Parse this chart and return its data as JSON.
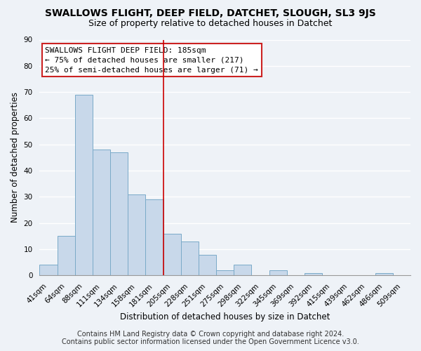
{
  "title": "SWALLOWS FLIGHT, DEEP FIELD, DATCHET, SLOUGH, SL3 9JS",
  "subtitle": "Size of property relative to detached houses in Datchet",
  "xlabel": "Distribution of detached houses by size in Datchet",
  "ylabel": "Number of detached properties",
  "bar_color": "#c8d8ea",
  "bar_edge_color": "#7aaac8",
  "categories": [
    "41sqm",
    "64sqm",
    "88sqm",
    "111sqm",
    "134sqm",
    "158sqm",
    "181sqm",
    "205sqm",
    "228sqm",
    "251sqm",
    "275sqm",
    "298sqm",
    "322sqm",
    "345sqm",
    "369sqm",
    "392sqm",
    "415sqm",
    "439sqm",
    "462sqm",
    "486sqm",
    "509sqm"
  ],
  "values": [
    4,
    15,
    69,
    48,
    47,
    31,
    29,
    16,
    13,
    8,
    2,
    4,
    0,
    2,
    0,
    1,
    0,
    0,
    0,
    1,
    0
  ],
  "vline_color": "#cc0000",
  "ylim": [
    0,
    90
  ],
  "yticks": [
    0,
    10,
    20,
    30,
    40,
    50,
    60,
    70,
    80,
    90
  ],
  "annotation_title": "SWALLOWS FLIGHT DEEP FIELD: 185sqm",
  "annotation_line1": "← 75% of detached houses are smaller (217)",
  "annotation_line2": "25% of semi-detached houses are larger (71) →",
  "footer1": "Contains HM Land Registry data © Crown copyright and database right 2024.",
  "footer2": "Contains public sector information licensed under the Open Government Licence v3.0.",
  "background_color": "#eef2f7",
  "plot_background": "#eef2f7",
  "grid_color": "white",
  "title_fontsize": 10,
  "subtitle_fontsize": 9,
  "annotation_fontsize": 8,
  "footer_fontsize": 7,
  "tick_fontsize": 7.5,
  "axis_label_fontsize": 8.5
}
